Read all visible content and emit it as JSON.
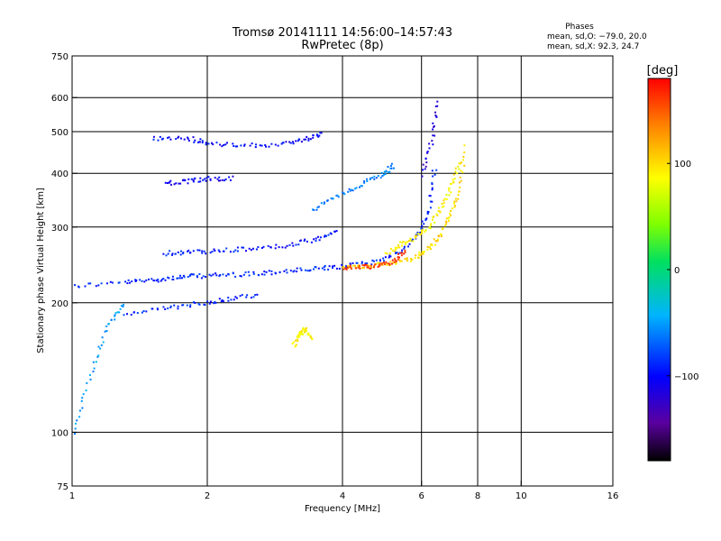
{
  "chart_data": {
    "type": "scatter",
    "title": "Tromsø 20141111 14:56:00–14:57:43",
    "subtitle": "RwPretec (8p)",
    "xlabel": "Frequency [MHz]",
    "ylabel": "Stationary phase Virtual Height [km]",
    "x_scale": "log",
    "y_scale": "log",
    "xlim": [
      1,
      16
    ],
    "ylim": [
      75,
      750
    ],
    "x_ticks": [
      1,
      2,
      4,
      6,
      8,
      10,
      16
    ],
    "x_tick_labels": [
      "1",
      "2",
      "4",
      "6",
      "8",
      "10",
      "16"
    ],
    "y_ticks": [
      75,
      100,
      200,
      300,
      400,
      500,
      600,
      750
    ],
    "y_tick_labels": [
      "75",
      "100",
      "200",
      "300",
      "400",
      "500",
      "600",
      "750"
    ],
    "x_gridlines": [
      2,
      4,
      6,
      8,
      10
    ],
    "y_gridlines": [
      100,
      200,
      300,
      400,
      500,
      600
    ],
    "grid": true,
    "phases_box": {
      "heading": "Phases",
      "line_o": "mean, sd,O: −79.0, 20.0",
      "line_x": "mean, sd,X:  92.3, 24.7"
    },
    "colorbar": {
      "label": "[deg]",
      "range": [
        -180,
        180
      ],
      "ticks": [
        100,
        0,
        -100
      ],
      "tick_labels": [
        "100",
        "0",
        "−100"
      ]
    },
    "traces": [
      {
        "f": [
          1.0,
          1.3,
          1.5,
          1.7,
          1.9,
          2.2,
          2.6,
          3.0,
          3.5,
          4.0,
          4.6,
          5.3,
          5.9,
          6.2,
          6.4
        ],
        "h": [
          220,
          224,
          227,
          230,
          232,
          233,
          235,
          238,
          241,
          244,
          249,
          262,
          290,
          330,
          420
        ],
        "phase": -90
      },
      {
        "f": [
          1.6,
          1.8,
          2.1,
          2.5,
          3.0,
          3.5,
          3.9
        ],
        "h": [
          262,
          263,
          265,
          268,
          273,
          282,
          295
        ],
        "phase": -95
      },
      {
        "f": [
          1.5,
          1.8,
          2.0,
          2.4,
          2.9,
          3.3,
          3.6
        ],
        "h": [
          485,
          485,
          472,
          465,
          470,
          482,
          500
        ],
        "phase": -100
      },
      {
        "f": [
          4.0,
          4.6,
          5.2,
          5.8,
          6.2,
          6.5,
          6.9,
          7.2,
          7.5
        ],
        "h": [
          244,
          245,
          248,
          256,
          268,
          284,
          318,
          360,
          470
        ],
        "phase": 100
      },
      {
        "f": [
          5.0,
          5.4,
          5.8,
          6.2,
          6.6,
          7.0,
          7.3
        ],
        "h": [
          262,
          275,
          285,
          300,
          335,
          380,
          430
        ],
        "phase": 90
      },
      {
        "f": [
          4.0,
          4.4,
          4.8,
          5.2,
          5.5
        ],
        "h": [
          243,
          243,
          245,
          252,
          265
        ],
        "phase": 160
      },
      {
        "f": [
          3.1,
          3.2,
          3.3,
          3.4
        ],
        "h": [
          160,
          170,
          175,
          165
        ],
        "phase": 90
      },
      {
        "f": [
          3.4,
          3.9,
          4.4,
          4.9,
          5.2
        ],
        "h": [
          330,
          355,
          380,
          400,
          420
        ],
        "phase": -60
      },
      {
        "f": [
          6.0,
          6.3,
          6.5
        ],
        "h": [
          400,
          480,
          600
        ],
        "phase": -120
      },
      {
        "f": [
          1.6,
          1.8,
          2.0,
          2.3
        ],
        "h": [
          380,
          385,
          390,
          392
        ],
        "phase": -105
      },
      {
        "f": [
          1.3,
          1.6,
          1.9,
          2.2,
          2.6
        ],
        "h": [
          190,
          195,
          200,
          205,
          210
        ],
        "phase": -90
      },
      {
        "f": [
          1.0,
          1.1,
          1.2,
          1.3
        ],
        "h": [
          100,
          140,
          180,
          200
        ],
        "phase": -50
      }
    ]
  }
}
